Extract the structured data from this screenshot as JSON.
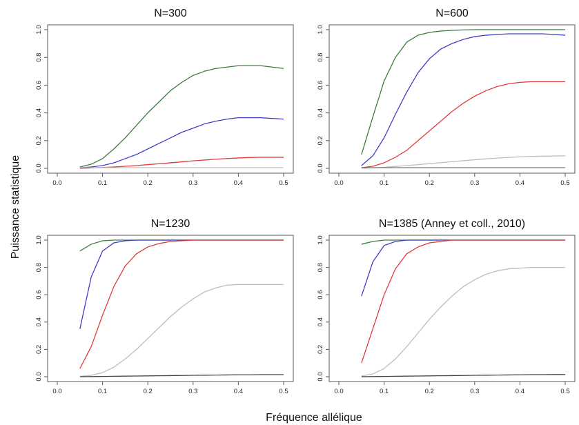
{
  "figure": {
    "ylabel": "Puissance statistique",
    "xlabel": "Fréquence allélique"
  },
  "chart_data": [
    {
      "type": "line",
      "title": "N=300",
      "xlim": [
        0.0,
        0.5
      ],
      "ylim": [
        0.0,
        1.0
      ],
      "xticks": [
        "0.0",
        "0.1",
        "0.2",
        "0.3",
        "0.4",
        "0.5"
      ],
      "yticks": [
        "0.0",
        "0.2",
        "0.4",
        "0.6",
        "0.8",
        "1.0"
      ],
      "x": [
        0.05,
        0.075,
        0.1,
        0.125,
        0.15,
        0.175,
        0.2,
        0.225,
        0.25,
        0.275,
        0.3,
        0.325,
        0.35,
        0.375,
        0.4,
        0.425,
        0.45,
        0.475,
        0.5
      ],
      "series": [
        {
          "color": "#3a7d3a",
          "values": [
            0.01,
            0.03,
            0.07,
            0.14,
            0.22,
            0.31,
            0.4,
            0.48,
            0.56,
            0.62,
            0.67,
            0.7,
            0.72,
            0.73,
            0.74,
            0.74,
            0.74,
            0.73,
            0.72
          ]
        },
        {
          "color": "#3d3dc8",
          "values": [
            0.005,
            0.01,
            0.02,
            0.04,
            0.07,
            0.1,
            0.14,
            0.18,
            0.22,
            0.26,
            0.29,
            0.32,
            0.34,
            0.355,
            0.365,
            0.365,
            0.365,
            0.36,
            0.355
          ]
        },
        {
          "color": "#e03a3a",
          "values": [
            0.0,
            0.003,
            0.006,
            0.01,
            0.015,
            0.02,
            0.027,
            0.033,
            0.04,
            0.047,
            0.054,
            0.06,
            0.066,
            0.071,
            0.075,
            0.078,
            0.08,
            0.08,
            0.08
          ]
        },
        {
          "color": "#bdbdbd",
          "values": [
            0.005,
            0.005,
            0.005,
            0.005,
            0.005,
            0.005,
            0.005,
            0.005,
            0.005,
            0.005,
            0.005,
            0.005,
            0.005,
            0.005,
            0.005,
            0.005,
            0.005,
            0.005,
            0.005
          ]
        }
      ]
    },
    {
      "type": "line",
      "title": "N=600",
      "xlim": [
        0.0,
        0.5
      ],
      "ylim": [
        0.0,
        1.0
      ],
      "xticks": [
        "0.0",
        "0.1",
        "0.2",
        "0.3",
        "0.4",
        "0.5"
      ],
      "yticks": [
        "0.0",
        "0.2",
        "0.4",
        "0.6",
        "0.8",
        "1.0"
      ],
      "x": [
        0.05,
        0.075,
        0.1,
        0.125,
        0.15,
        0.175,
        0.2,
        0.225,
        0.25,
        0.275,
        0.3,
        0.325,
        0.35,
        0.375,
        0.4,
        0.425,
        0.45,
        0.475,
        0.5
      ],
      "series": [
        {
          "color": "#3a7d3a",
          "values": [
            0.1,
            0.37,
            0.63,
            0.8,
            0.91,
            0.96,
            0.98,
            0.99,
            0.995,
            0.998,
            1.0,
            1.0,
            1.0,
            1.0,
            1.0,
            1.0,
            1.0,
            1.0,
            1.0
          ]
        },
        {
          "color": "#3d3dc8",
          "values": [
            0.02,
            0.09,
            0.22,
            0.39,
            0.55,
            0.69,
            0.79,
            0.86,
            0.9,
            0.93,
            0.95,
            0.96,
            0.965,
            0.97,
            0.97,
            0.97,
            0.97,
            0.965,
            0.96
          ]
        },
        {
          "color": "#e03a3a",
          "values": [
            0.005,
            0.015,
            0.04,
            0.08,
            0.13,
            0.2,
            0.27,
            0.34,
            0.41,
            0.47,
            0.52,
            0.56,
            0.59,
            0.61,
            0.62,
            0.625,
            0.625,
            0.625,
            0.625
          ]
        },
        {
          "color": "#bdbdbd",
          "values": [
            0.0,
            0.003,
            0.008,
            0.014,
            0.02,
            0.027,
            0.034,
            0.041,
            0.048,
            0.055,
            0.062,
            0.068,
            0.074,
            0.079,
            0.083,
            0.086,
            0.088,
            0.089,
            0.09
          ]
        },
        {
          "color": "#777777",
          "values": [
            0.005,
            0.005,
            0.005,
            0.005,
            0.005,
            0.005,
            0.005,
            0.005,
            0.005,
            0.005,
            0.005,
            0.005,
            0.005,
            0.005,
            0.005,
            0.005,
            0.005,
            0.005,
            0.005
          ]
        }
      ]
    },
    {
      "type": "line",
      "title": "N=1230",
      "xlim": [
        0.0,
        0.5
      ],
      "ylim": [
        0.0,
        1.0
      ],
      "xticks": [
        "0.0",
        "0.1",
        "0.2",
        "0.3",
        "0.4",
        "0.5"
      ],
      "yticks": [
        "0.0",
        "0.2",
        "0.4",
        "0.6",
        "0.8",
        "1.0"
      ],
      "x": [
        0.05,
        0.075,
        0.1,
        0.125,
        0.15,
        0.175,
        0.2,
        0.225,
        0.25,
        0.275,
        0.3,
        0.325,
        0.35,
        0.375,
        0.4,
        0.425,
        0.45,
        0.475,
        0.5
      ],
      "series": [
        {
          "color": "#3a7d3a",
          "values": [
            0.92,
            0.97,
            0.995,
            1.0,
            1.0,
            1.0,
            1.0,
            1.0,
            1.0,
            1.0,
            1.0,
            1.0,
            1.0,
            1.0,
            1.0,
            1.0,
            1.0,
            1.0,
            1.0
          ]
        },
        {
          "color": "#3d3dc8",
          "values": [
            0.35,
            0.73,
            0.92,
            0.98,
            0.995,
            1.0,
            1.0,
            1.0,
            1.0,
            1.0,
            1.0,
            1.0,
            1.0,
            1.0,
            1.0,
            1.0,
            1.0,
            1.0,
            1.0
          ]
        },
        {
          "color": "#e03a3a",
          "values": [
            0.06,
            0.22,
            0.45,
            0.66,
            0.81,
            0.9,
            0.95,
            0.975,
            0.99,
            0.995,
            1.0,
            1.0,
            1.0,
            1.0,
            1.0,
            1.0,
            1.0,
            1.0,
            1.0
          ]
        },
        {
          "color": "#bdbdbd",
          "values": [
            0.003,
            0.01,
            0.03,
            0.07,
            0.13,
            0.2,
            0.28,
            0.36,
            0.44,
            0.51,
            0.57,
            0.62,
            0.65,
            0.67,
            0.675,
            0.675,
            0.675,
            0.675,
            0.675
          ]
        },
        {
          "color": "#444444",
          "values": [
            0.0,
            0.001,
            0.002,
            0.003,
            0.004,
            0.005,
            0.006,
            0.007,
            0.008,
            0.009,
            0.01,
            0.011,
            0.012,
            0.013,
            0.014,
            0.014,
            0.015,
            0.015,
            0.015
          ]
        }
      ]
    },
    {
      "type": "line",
      "title": "N=1385 (Anney et coll., 2010)",
      "xlim": [
        0.0,
        0.5
      ],
      "ylim": [
        0.0,
        1.0
      ],
      "xticks": [
        "0.0",
        "0.1",
        "0.2",
        "0.3",
        "0.4",
        "0.5"
      ],
      "yticks": [
        "0.0",
        "0.2",
        "0.4",
        "0.6",
        "0.8",
        "1.0"
      ],
      "x": [
        0.05,
        0.075,
        0.1,
        0.125,
        0.15,
        0.175,
        0.2,
        0.225,
        0.25,
        0.275,
        0.3,
        0.325,
        0.35,
        0.375,
        0.4,
        0.425,
        0.45,
        0.475,
        0.5
      ],
      "series": [
        {
          "color": "#3a7d3a",
          "values": [
            0.97,
            0.99,
            1.0,
            1.0,
            1.0,
            1.0,
            1.0,
            1.0,
            1.0,
            1.0,
            1.0,
            1.0,
            1.0,
            1.0,
            1.0,
            1.0,
            1.0,
            1.0,
            1.0
          ]
        },
        {
          "color": "#3d3dc8",
          "values": [
            0.59,
            0.84,
            0.96,
            0.99,
            1.0,
            1.0,
            1.0,
            1.0,
            1.0,
            1.0,
            1.0,
            1.0,
            1.0,
            1.0,
            1.0,
            1.0,
            1.0,
            1.0,
            1.0
          ]
        },
        {
          "color": "#e03a3a",
          "values": [
            0.1,
            0.35,
            0.6,
            0.79,
            0.9,
            0.95,
            0.98,
            0.99,
            1.0,
            1.0,
            1.0,
            1.0,
            1.0,
            1.0,
            1.0,
            1.0,
            1.0,
            1.0,
            1.0
          ]
        },
        {
          "color": "#bdbdbd",
          "values": [
            0.005,
            0.02,
            0.06,
            0.13,
            0.22,
            0.32,
            0.42,
            0.51,
            0.59,
            0.66,
            0.71,
            0.75,
            0.775,
            0.79,
            0.795,
            0.8,
            0.8,
            0.8,
            0.8
          ]
        },
        {
          "color": "#444444",
          "values": [
            0.0,
            0.001,
            0.002,
            0.003,
            0.004,
            0.005,
            0.006,
            0.007,
            0.008,
            0.009,
            0.01,
            0.011,
            0.012,
            0.013,
            0.014,
            0.015,
            0.015,
            0.016,
            0.016
          ]
        }
      ]
    }
  ]
}
